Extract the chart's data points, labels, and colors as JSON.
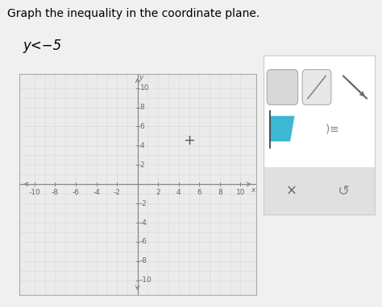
{
  "title": "Graph the inequality in the coordinate plane.",
  "inequality": "y<−5",
  "xlim": [
    -11.5,
    11.5
  ],
  "ylim": [
    -11.5,
    11.5
  ],
  "xticks": [
    -10,
    -8,
    -6,
    -4,
    -2,
    2,
    4,
    6,
    8,
    10
  ],
  "yticks": [
    -10,
    -8,
    -6,
    -4,
    -2,
    2,
    4,
    6,
    8,
    10
  ],
  "grid_color": "#d8d8d8",
  "axis_color": "#888888",
  "bg_color": "#f0f0f0",
  "plot_bg": "#ebebeb",
  "tick_fontsize": 6.5,
  "title_fontsize": 10,
  "ineq_fontsize": 12,
  "plus_x": 5.0,
  "plus_y": 4.5,
  "panel_bg": "#ffffff",
  "panel_border": "#cccccc",
  "blue_fill": "#3db8d4"
}
